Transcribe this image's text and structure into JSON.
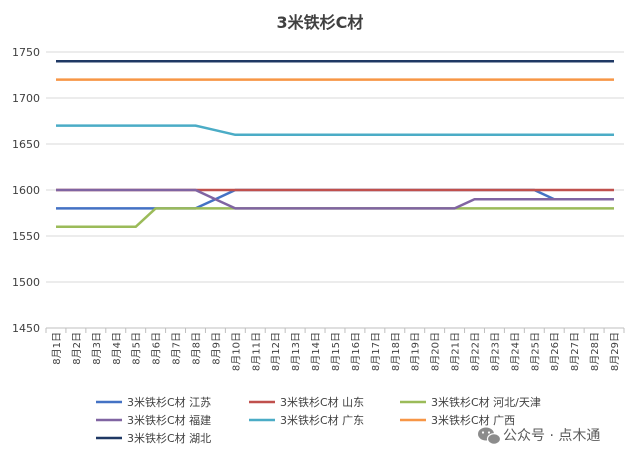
{
  "chart_data": {
    "type": "line",
    "title": "3米铁杉C材",
    "xlabel": "",
    "ylabel": "",
    "ylim": [
      1450,
      1750
    ],
    "ytick_step": 50,
    "grid": true,
    "legend_position": "bottom",
    "categories": [
      "8月1日",
      "8月2日",
      "8月3日",
      "8月4日",
      "8月5日",
      "8月6日",
      "8月7日",
      "8月8日",
      "8月9日",
      "8月10日",
      "8月11日",
      "8月12日",
      "8月13日",
      "8月14日",
      "8月15日",
      "8月16日",
      "8月17日",
      "8月18日",
      "8月19日",
      "8月20日",
      "8月21日",
      "8月22日",
      "8月23日",
      "8月24日",
      "8月25日",
      "8月26日",
      "8月27日",
      "8月28日",
      "8月29日"
    ],
    "series": [
      {
        "name": "3米铁杉C材 江苏",
        "color": "#4472C4",
        "values": [
          1580,
          1580,
          1580,
          1580,
          1580,
          1580,
          1580,
          1580,
          1590,
          1600,
          1600,
          1600,
          1600,
          1600,
          1600,
          1600,
          1600,
          1600,
          1600,
          1600,
          1600,
          1600,
          1600,
          1600,
          1600,
          1590,
          1590,
          1590,
          1590
        ]
      },
      {
        "name": "3米铁杉C材 山东",
        "color": "#C0504D",
        "values": [
          1600,
          1600,
          1600,
          1600,
          1600,
          1600,
          1600,
          1600,
          1600,
          1600,
          1600,
          1600,
          1600,
          1600,
          1600,
          1600,
          1600,
          1600,
          1600,
          1600,
          1600,
          1600,
          1600,
          1600,
          1600,
          1600,
          1600,
          1600,
          1600
        ]
      },
      {
        "name": "3米铁杉C材 河北/天津",
        "color": "#9BBB59",
        "values": [
          1560,
          1560,
          1560,
          1560,
          1560,
          1580,
          1580,
          1580,
          1580,
          1580,
          1580,
          1580,
          1580,
          1580,
          1580,
          1580,
          1580,
          1580,
          1580,
          1580,
          1580,
          1580,
          1580,
          1580,
          1580,
          1580,
          1580,
          1580,
          1580
        ]
      },
      {
        "name": "3米铁杉C材 福建",
        "color": "#8064A2",
        "values": [
          1600,
          1600,
          1600,
          1600,
          1600,
          1600,
          1600,
          1600,
          1590,
          1580,
          1580,
          1580,
          1580,
          1580,
          1580,
          1580,
          1580,
          1580,
          1580,
          1580,
          1580,
          1590,
          1590,
          1590,
          1590,
          1590,
          1590,
          1590,
          1590
        ]
      },
      {
        "name": "3米铁杉C材 广东",
        "color": "#4BACC6",
        "values": [
          1670,
          1670,
          1670,
          1670,
          1670,
          1670,
          1670,
          1670,
          1665,
          1660,
          1660,
          1660,
          1660,
          1660,
          1660,
          1660,
          1660,
          1660,
          1660,
          1660,
          1660,
          1660,
          1660,
          1660,
          1660,
          1660,
          1660,
          1660,
          1660
        ]
      },
      {
        "name": "3米铁杉C材 广西",
        "color": "#F79646",
        "values": [
          1720,
          1720,
          1720,
          1720,
          1720,
          1720,
          1720,
          1720,
          1720,
          1720,
          1720,
          1720,
          1720,
          1720,
          1720,
          1720,
          1720,
          1720,
          1720,
          1720,
          1720,
          1720,
          1720,
          1720,
          1720,
          1720,
          1720,
          1720,
          1720
        ]
      },
      {
        "name": "3米铁杉C材 湖北",
        "color": "#1F3864",
        "values": [
          1740,
          1740,
          1740,
          1740,
          1740,
          1740,
          1740,
          1740,
          1740,
          1740,
          1740,
          1740,
          1740,
          1740,
          1740,
          1740,
          1740,
          1740,
          1740,
          1740,
          1740,
          1740,
          1740,
          1740,
          1740,
          1740,
          1740,
          1740,
          1740
        ]
      }
    ]
  },
  "watermark": {
    "text": "公众号 · 点木通",
    "icon": "wechat-icon"
  }
}
